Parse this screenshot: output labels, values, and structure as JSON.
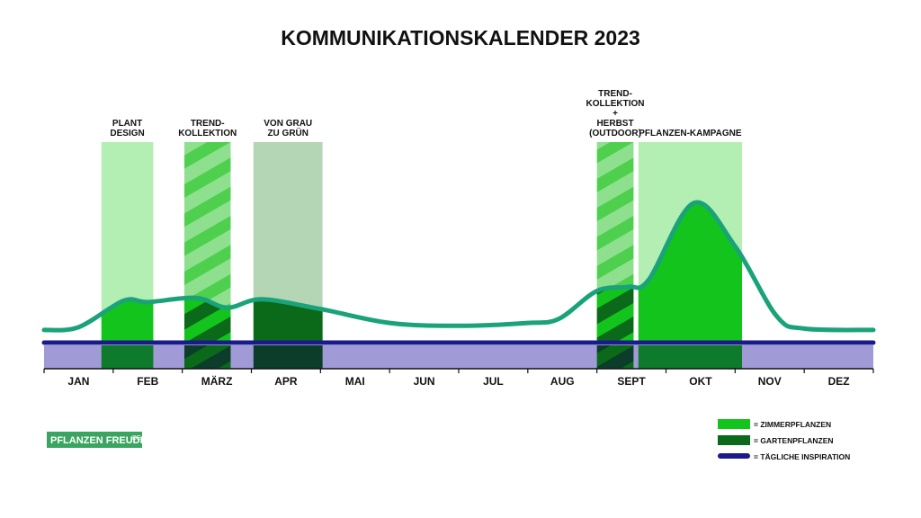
{
  "title": "KOMMUNIKATIONSKALENDER 2023",
  "logo": {
    "text": "PFLANZEN FREUDE",
    "suffix": ".DE"
  },
  "colors": {
    "zimmer": "#12c41b",
    "garten": "#0a6a1a",
    "inspiration": "#1a1a8c",
    "baseline_band": "#a09ad6",
    "curve": "#1aa37a",
    "band_light": "#b3efb3",
    "band_gray": "#b5d6b5",
    "stripe_light": "#8ee08e",
    "stripe_dark": "#4ed04e",
    "logo_bg": "#3aa560"
  },
  "chart_data": {
    "type": "area",
    "title": "KOMMUNIKATIONSKALENDER 2023",
    "x_axis": {
      "categories": [
        "JAN",
        "FEB",
        "MÄRZ",
        "APR",
        "MAI",
        "JUN",
        "JUL",
        "AUG",
        "SEPT",
        "OKT",
        "NOV",
        "DEZ"
      ],
      "range": [
        0,
        12
      ]
    },
    "curve": {
      "points": [
        [
          0.0,
          0.02
        ],
        [
          0.5,
          0.04
        ],
        [
          1.15,
          0.23
        ],
        [
          1.5,
          0.22
        ],
        [
          2.2,
          0.25
        ],
        [
          2.65,
          0.18
        ],
        [
          3.15,
          0.24
        ],
        [
          4.0,
          0.17
        ],
        [
          5.0,
          0.07
        ],
        [
          6.0,
          0.05
        ],
        [
          7.0,
          0.07
        ],
        [
          7.45,
          0.1
        ],
        [
          8.0,
          0.3
        ],
        [
          8.45,
          0.33
        ],
        [
          8.75,
          0.38
        ],
        [
          9.4,
          0.93
        ],
        [
          10.0,
          0.62
        ],
        [
          10.6,
          0.12
        ],
        [
          11.0,
          0.03
        ],
        [
          12.0,
          0.02
        ]
      ]
    },
    "campaigns": [
      {
        "lines": [
          "PLANT",
          "DESIGN"
        ],
        "start": 0.83,
        "end": 1.58,
        "category": "zimmer",
        "pattern": "solid"
      },
      {
        "lines": [
          "TREND-",
          "KOLLEKTION"
        ],
        "start": 2.03,
        "end": 2.7,
        "category": "zimmer",
        "pattern": "striped"
      },
      {
        "lines": [
          "VON GRAU",
          "ZU GRÜN"
        ],
        "start": 3.03,
        "end": 4.03,
        "category": "garten",
        "pattern": "gray"
      },
      {
        "lines": [
          "TREND-",
          "KOLLEKTION",
          "+",
          "HERBST",
          "(OUTDOOR)"
        ],
        "start": 8.0,
        "end": 8.53,
        "category": "zimmer",
        "pattern": "striped"
      },
      {
        "lines": [
          "PFLANZEN-KAMPAGNE"
        ],
        "start": 8.6,
        "end": 10.1,
        "category": "zimmer",
        "pattern": "solid"
      }
    ],
    "baseline": {
      "name": "TÄGLICHE INSPIRATION"
    },
    "legend": [
      {
        "key": "zimmer",
        "label": "= ZIMMERPFLANZEN"
      },
      {
        "key": "garten",
        "label": "= GARTENPFLANZEN"
      },
      {
        "key": "inspiration",
        "label": "= TÄGLICHE INSPIRATION"
      }
    ],
    "legend_position": "bottom-right",
    "grid": false
  }
}
